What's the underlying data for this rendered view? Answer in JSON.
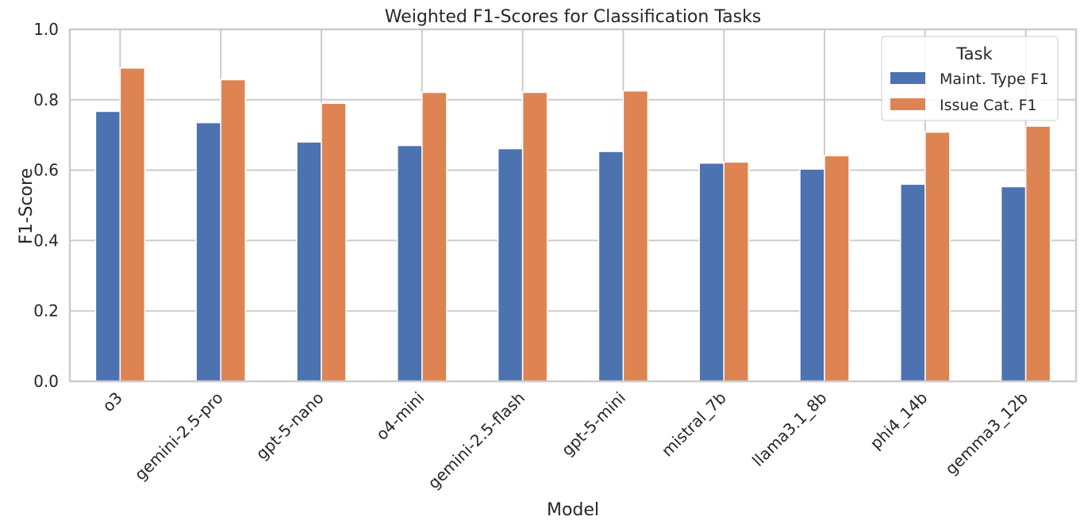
{
  "chart_data": {
    "type": "bar",
    "title": "Weighted F1-Scores for Classification Tasks",
    "xlabel": "Model",
    "ylabel": "F1-Score",
    "ylim": [
      0,
      1.0
    ],
    "yticks": [
      "0.0",
      "0.2",
      "0.4",
      "0.6",
      "0.8",
      "1.0"
    ],
    "grid": true,
    "legend": {
      "title": "Task",
      "placement": "top-right"
    },
    "categories": [
      "o3",
      "gemini-2.5-pro",
      "gpt-5-nano",
      "o4-mini",
      "gemini-2.5-flash",
      "gpt-5-mini",
      "mistral_7b",
      "llama3.1_8b",
      "phi4_14b",
      "gemma3_12b"
    ],
    "series": [
      {
        "name": "Maint. Type F1",
        "color": "#4C72B0",
        "values": [
          0.767,
          0.735,
          0.68,
          0.67,
          0.661,
          0.653,
          0.62,
          0.603,
          0.56,
          0.553
        ]
      },
      {
        "name": "Issue Cat. F1",
        "color": "#DD8452",
        "values": [
          0.89,
          0.857,
          0.79,
          0.821,
          0.821,
          0.825,
          0.623,
          0.641,
          0.708,
          0.725
        ]
      }
    ]
  }
}
